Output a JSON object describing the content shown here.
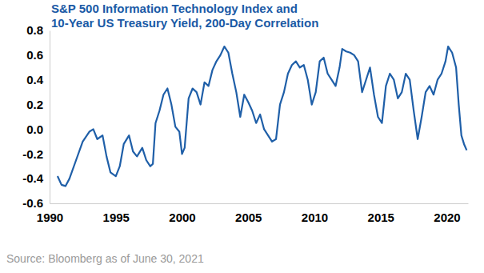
{
  "chart_data": {
    "type": "line",
    "title": [
      "S&P 500 Information Technology Index and",
      "10-Year US Treasury Yield, 200-Day Correlation"
    ],
    "source": "Source: Bloomberg as of June 30, 2021",
    "color": "#1f5fa8",
    "xlim": [
      1990,
      2021.6
    ],
    "xticks": [
      1990,
      1995,
      2000,
      2005,
      2010,
      2015,
      2020
    ],
    "ylim": [
      -0.6,
      0.8
    ],
    "yticks": [
      -0.6,
      -0.4,
      -0.2,
      {
        "value": 0,
        "label": "0.0"
      },
      0.2,
      0.4,
      0.6,
      0.8
    ],
    "grid": false,
    "x": [
      1990.6,
      1990.9,
      1991.2,
      1991.5,
      1992.0,
      1992.5,
      1993.0,
      1993.3,
      1993.6,
      1994.0,
      1994.3,
      1994.6,
      1995.0,
      1995.3,
      1995.6,
      1996.0,
      1996.3,
      1996.6,
      1997.0,
      1997.3,
      1997.6,
      1997.8,
      1998.0,
      1998.3,
      1998.6,
      1998.9,
      1999.2,
      1999.5,
      1999.8,
      2000.0,
      2000.2,
      2000.5,
      2000.8,
      2001.1,
      2001.4,
      2001.7,
      2002.0,
      2002.3,
      2002.6,
      2002.9,
      2003.2,
      2003.5,
      2003.8,
      2004.1,
      2004.4,
      2004.7,
      2005.0,
      2005.3,
      2005.6,
      2005.9,
      2006.2,
      2006.5,
      2006.8,
      2007.1,
      2007.4,
      2007.7,
      2008.0,
      2008.3,
      2008.6,
      2008.9,
      2009.2,
      2009.5,
      2009.8,
      2010.1,
      2010.4,
      2010.7,
      2011.0,
      2011.3,
      2011.6,
      2011.9,
      2012.1,
      2012.4,
      2012.7,
      2013.0,
      2013.3,
      2013.6,
      2013.9,
      2014.2,
      2014.5,
      2014.8,
      2015.1,
      2015.4,
      2015.7,
      2016.0,
      2016.3,
      2016.6,
      2016.9,
      2017.2,
      2017.5,
      2017.8,
      2018.1,
      2018.4,
      2018.7,
      2019.0,
      2019.3,
      2019.6,
      2019.9,
      2020.1,
      2020.4,
      2020.7,
      2020.9,
      2021.1,
      2021.3,
      2021.5
    ],
    "values": [
      -0.38,
      -0.45,
      -0.46,
      -0.4,
      -0.25,
      -0.1,
      -0.02,
      0.0,
      -0.08,
      -0.05,
      -0.22,
      -0.35,
      -0.38,
      -0.3,
      -0.12,
      -0.05,
      -0.18,
      -0.22,
      -0.15,
      -0.25,
      -0.3,
      -0.28,
      0.05,
      0.15,
      0.28,
      0.33,
      0.2,
      0.02,
      -0.02,
      -0.2,
      -0.15,
      0.25,
      0.33,
      0.3,
      0.2,
      0.38,
      0.35,
      0.48,
      0.55,
      0.6,
      0.67,
      0.62,
      0.45,
      0.3,
      0.1,
      0.28,
      0.22,
      0.15,
      0.05,
      0.12,
      0.0,
      -0.05,
      -0.1,
      -0.08,
      0.2,
      0.3,
      0.45,
      0.52,
      0.55,
      0.5,
      0.52,
      0.4,
      0.2,
      0.3,
      0.55,
      0.58,
      0.45,
      0.4,
      0.35,
      0.5,
      0.65,
      0.63,
      0.62,
      0.6,
      0.55,
      0.3,
      0.4,
      0.5,
      0.28,
      0.1,
      0.05,
      0.35,
      0.45,
      0.4,
      0.25,
      0.3,
      0.45,
      0.4,
      0.15,
      -0.08,
      0.1,
      0.3,
      0.35,
      0.28,
      0.4,
      0.45,
      0.55,
      0.67,
      0.62,
      0.5,
      0.2,
      -0.05,
      -0.12,
      -0.17
    ]
  }
}
